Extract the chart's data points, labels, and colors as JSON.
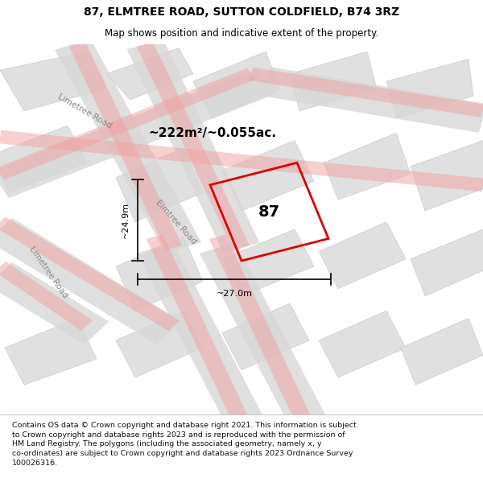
{
  "title": "87, ELMTREE ROAD, SUTTON COLDFIELD, B74 3RZ",
  "subtitle": "Map shows position and indicative extent of the property.",
  "area_label": "~222m²/~0.055ac.",
  "property_number": "87",
  "dim_vertical": "~24.9m",
  "dim_horizontal": "~27.0m",
  "road_label1": "Limetree Road",
  "road_label2": "Elmtree Road",
  "road_label3": "Limetree Road",
  "footer_text": "Contains OS data © Crown copyright and database right 2021. This information is subject\nto Crown copyright and database rights 2023 and is reproduced with the permission of\nHM Land Registry. The polygons (including the associated geometry, namely x, y\nco-ordinates) are subject to Crown copyright and database rights 2023 Ordnance Survey\n100026316.",
  "map_bg": "#f0f0f0",
  "header_bg": "#ffffff",
  "footer_bg": "#ffffff",
  "block_fill": "#e0e0e0",
  "block_edge": "#cccccc",
  "pink_road": "#f2a0a0",
  "red_polygon": "#dd0000",
  "figsize": [
    6.0,
    6.25
  ],
  "dpi": 100
}
